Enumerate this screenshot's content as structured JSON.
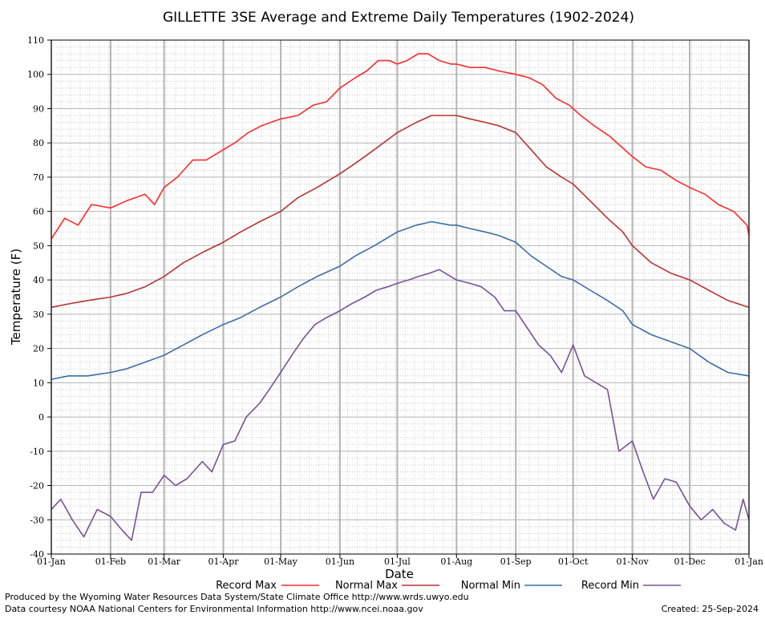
{
  "chart_data": {
    "type": "line",
    "title": "GILLETTE 3SE Average and Extreme Daily Temperatures (1902-2024)",
    "xlabel": "Date",
    "ylabel": "Temperature (F)",
    "ylim": [
      -40,
      110
    ],
    "yticks": [
      -40,
      -30,
      -20,
      -10,
      0,
      10,
      20,
      30,
      40,
      50,
      60,
      70,
      80,
      90,
      100,
      110
    ],
    "x_tick_labels": [
      "01-Jan",
      "01-Feb",
      "01-Mar",
      "01-Apr",
      "01-May",
      "01-Jun",
      "01-Jul",
      "01-Aug",
      "01-Sep",
      "01-Oct",
      "01-Nov",
      "01-Dec",
      "01-Jan"
    ],
    "x_tick_days": [
      1,
      32,
      60,
      91,
      121,
      152,
      182,
      213,
      244,
      274,
      305,
      335,
      366
    ],
    "x_axis": "day of year (1 = 01-Jan, 366 = next 01-Jan)",
    "grid": true,
    "legend_position": "bottom",
    "series": [
      {
        "name": "Record Max",
        "color": "#ff2a2a",
        "points": [
          [
            1,
            52
          ],
          [
            8,
            58
          ],
          [
            15,
            56
          ],
          [
            22,
            62
          ],
          [
            32,
            61
          ],
          [
            40,
            63
          ],
          [
            50,
            65
          ],
          [
            55,
            62
          ],
          [
            60,
            67
          ],
          [
            67,
            70
          ],
          [
            75,
            75
          ],
          [
            82,
            75
          ],
          [
            91,
            78
          ],
          [
            97,
            80
          ],
          [
            104,
            83
          ],
          [
            111,
            85
          ],
          [
            121,
            87
          ],
          [
            130,
            88
          ],
          [
            138,
            91
          ],
          [
            145,
            92
          ],
          [
            152,
            96
          ],
          [
            160,
            99
          ],
          [
            166,
            101
          ],
          [
            172,
            104
          ],
          [
            178,
            104
          ],
          [
            182,
            103
          ],
          [
            187,
            104
          ],
          [
            193,
            106
          ],
          [
            198,
            106
          ],
          [
            204,
            104
          ],
          [
            210,
            103
          ],
          [
            213,
            103
          ],
          [
            220,
            102
          ],
          [
            228,
            102
          ],
          [
            235,
            101
          ],
          [
            244,
            100
          ],
          [
            251,
            99
          ],
          [
            258,
            97
          ],
          [
            265,
            93
          ],
          [
            272,
            91
          ],
          [
            278,
            88
          ],
          [
            285,
            85
          ],
          [
            293,
            82
          ],
          [
            299,
            79
          ],
          [
            305,
            76
          ],
          [
            312,
            73
          ],
          [
            320,
            72
          ],
          [
            328,
            69
          ],
          [
            335,
            67
          ],
          [
            343,
            65
          ],
          [
            350,
            62
          ],
          [
            358,
            60
          ],
          [
            365,
            56
          ],
          [
            366,
            53
          ]
        ]
      },
      {
        "name": "Normal Max",
        "color": "#b83232",
        "points": [
          [
            1,
            32
          ],
          [
            10,
            33
          ],
          [
            20,
            34
          ],
          [
            32,
            35
          ],
          [
            40,
            36
          ],
          [
            50,
            38
          ],
          [
            60,
            41
          ],
          [
            70,
            45
          ],
          [
            80,
            48
          ],
          [
            91,
            51
          ],
          [
            100,
            54
          ],
          [
            110,
            57
          ],
          [
            121,
            60
          ],
          [
            130,
            64
          ],
          [
            140,
            67
          ],
          [
            152,
            71
          ],
          [
            160,
            74
          ],
          [
            170,
            78
          ],
          [
            182,
            83
          ],
          [
            192,
            86
          ],
          [
            200,
            88
          ],
          [
            210,
            88
          ],
          [
            213,
            88
          ],
          [
            220,
            87
          ],
          [
            228,
            86
          ],
          [
            235,
            85
          ],
          [
            244,
            83
          ],
          [
            252,
            78
          ],
          [
            260,
            73
          ],
          [
            268,
            70
          ],
          [
            274,
            68
          ],
          [
            283,
            63
          ],
          [
            292,
            58
          ],
          [
            300,
            54
          ],
          [
            305,
            50
          ],
          [
            315,
            45
          ],
          [
            325,
            42
          ],
          [
            335,
            40
          ],
          [
            345,
            37
          ],
          [
            355,
            34
          ],
          [
            366,
            32
          ]
        ]
      },
      {
        "name": "Normal Min",
        "color": "#3a6ea5",
        "points": [
          [
            1,
            11
          ],
          [
            10,
            12
          ],
          [
            20,
            12
          ],
          [
            32,
            13
          ],
          [
            40,
            14
          ],
          [
            50,
            16
          ],
          [
            60,
            18
          ],
          [
            70,
            21
          ],
          [
            80,
            24
          ],
          [
            91,
            27
          ],
          [
            100,
            29
          ],
          [
            110,
            32
          ],
          [
            121,
            35
          ],
          [
            130,
            38
          ],
          [
            140,
            41
          ],
          [
            152,
            44
          ],
          [
            160,
            47
          ],
          [
            170,
            50
          ],
          [
            182,
            54
          ],
          [
            192,
            56
          ],
          [
            200,
            57
          ],
          [
            210,
            56
          ],
          [
            213,
            56
          ],
          [
            220,
            55
          ],
          [
            228,
            54
          ],
          [
            235,
            53
          ],
          [
            244,
            51
          ],
          [
            252,
            47
          ],
          [
            260,
            44
          ],
          [
            268,
            41
          ],
          [
            274,
            40
          ],
          [
            283,
            37
          ],
          [
            292,
            34
          ],
          [
            300,
            31
          ],
          [
            305,
            27
          ],
          [
            315,
            24
          ],
          [
            325,
            22
          ],
          [
            335,
            20
          ],
          [
            345,
            16
          ],
          [
            355,
            13
          ],
          [
            366,
            12
          ]
        ]
      },
      {
        "name": "Record Min",
        "color": "#765396",
        "points": [
          [
            1,
            -27
          ],
          [
            6,
            -24
          ],
          [
            12,
            -30
          ],
          [
            18,
            -35
          ],
          [
            25,
            -27
          ],
          [
            32,
            -29
          ],
          [
            38,
            -33
          ],
          [
            43,
            -36
          ],
          [
            48,
            -22
          ],
          [
            54,
            -22
          ],
          [
            60,
            -17
          ],
          [
            66,
            -20
          ],
          [
            72,
            -18
          ],
          [
            80,
            -13
          ],
          [
            85,
            -16
          ],
          [
            91,
            -8
          ],
          [
            97,
            -7
          ],
          [
            103,
            0
          ],
          [
            110,
            4
          ],
          [
            115,
            8
          ],
          [
            121,
            13
          ],
          [
            128,
            19
          ],
          [
            133,
            23
          ],
          [
            139,
            27
          ],
          [
            145,
            29
          ],
          [
            152,
            31
          ],
          [
            158,
            33
          ],
          [
            165,
            35
          ],
          [
            171,
            37
          ],
          [
            177,
            38
          ],
          [
            182,
            39
          ],
          [
            188,
            40
          ],
          [
            193,
            41
          ],
          [
            199,
            42
          ],
          [
            204,
            43
          ],
          [
            210,
            41
          ],
          [
            213,
            40
          ],
          [
            220,
            39
          ],
          [
            226,
            38
          ],
          [
            233,
            35
          ],
          [
            238,
            31
          ],
          [
            244,
            31
          ],
          [
            250,
            26
          ],
          [
            256,
            21
          ],
          [
            262,
            18
          ],
          [
            268,
            13
          ],
          [
            274,
            21
          ],
          [
            280,
            12
          ],
          [
            286,
            10
          ],
          [
            292,
            8
          ],
          [
            298,
            -10
          ],
          [
            305,
            -7
          ],
          [
            310,
            -15
          ],
          [
            316,
            -24
          ],
          [
            322,
            -18
          ],
          [
            328,
            -19
          ],
          [
            335,
            -26
          ],
          [
            341,
            -30
          ],
          [
            347,
            -27
          ],
          [
            353,
            -31
          ],
          [
            359,
            -33
          ],
          [
            363,
            -24
          ],
          [
            366,
            -30
          ]
        ]
      }
    ]
  },
  "footer": {
    "produced_by": "Produced by the Wyoming Water Resources Data System/State Climate Office http://www.wrds.uwyo.edu",
    "data_courtesy": "Data courtesy NOAA National Centers for Environmental Information http://www.ncei.noaa.gov",
    "created": "Created:  25-Sep-2024"
  }
}
